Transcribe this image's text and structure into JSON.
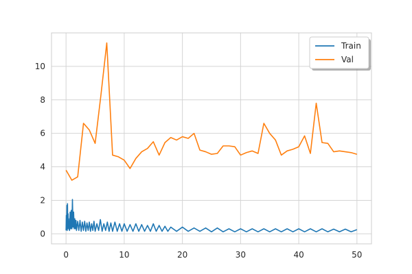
{
  "chart_data": {
    "type": "line",
    "title": "",
    "xlabel": "",
    "ylabel": "",
    "xlim": [
      -2.5,
      52.5
    ],
    "ylim": [
      -0.6,
      12.0
    ],
    "xticks": [
      0,
      10,
      20,
      30,
      40,
      50
    ],
    "yticks": [
      0,
      2,
      4,
      6,
      8,
      10
    ],
    "x_tick_labels": [
      "0",
      "10",
      "20",
      "30",
      "40",
      "50"
    ],
    "y_tick_labels": [
      "0",
      "2",
      "4",
      "6",
      "8",
      "10"
    ],
    "grid": true,
    "legend_position": "top-right",
    "series": [
      {
        "name": "Train",
        "color": "#1f77b4",
        "x": [
          0.0,
          0.05,
          0.1,
          0.15,
          0.2,
          0.25,
          0.3,
          0.35,
          0.4,
          0.45,
          0.5,
          0.6,
          0.7,
          0.8,
          0.9,
          1.0,
          1.1,
          1.2,
          1.3,
          1.4,
          1.5,
          1.6,
          1.7,
          1.8,
          2.0,
          2.2,
          2.4,
          2.6,
          2.8,
          3.0,
          3.2,
          3.4,
          3.6,
          3.8,
          4.0,
          4.2,
          4.4,
          4.6,
          4.8,
          5.0,
          5.3,
          5.6,
          5.9,
          6.2,
          6.5,
          6.8,
          7.1,
          7.4,
          7.7,
          8.0,
          8.4,
          8.8,
          9.2,
          9.6,
          10.0,
          10.5,
          11.0,
          11.5,
          12.0,
          12.5,
          13.0,
          13.5,
          14.0,
          14.5,
          15.0,
          15.5,
          16.0,
          16.5,
          17.0,
          17.5,
          18.0,
          19.0,
          20.0,
          21.0,
          22.0,
          23.0,
          24.0,
          25.0,
          26.0,
          27.0,
          28.0,
          29.0,
          30.0,
          31.0,
          32.0,
          33.0,
          34.0,
          35.0,
          36.0,
          37.0,
          38.0,
          39.0,
          40.0,
          41.0,
          42.0,
          43.0,
          44.0,
          45.0,
          46.0,
          47.0,
          48.0,
          49.0,
          50.0
        ],
        "values": [
          0.2,
          1.1,
          0.3,
          1.7,
          0.2,
          1.8,
          0.3,
          1.2,
          0.5,
          0.9,
          0.3,
          0.2,
          1.3,
          0.3,
          1.4,
          0.3,
          2.05,
          0.4,
          1.3,
          0.3,
          0.9,
          0.3,
          0.8,
          0.2,
          0.75,
          0.2,
          0.8,
          0.15,
          0.7,
          0.2,
          0.75,
          0.15,
          0.65,
          0.2,
          0.7,
          0.15,
          0.6,
          0.2,
          0.75,
          0.15,
          0.6,
          0.2,
          0.85,
          0.15,
          0.6,
          0.2,
          0.7,
          0.15,
          0.65,
          0.15,
          0.7,
          0.15,
          0.6,
          0.15,
          0.6,
          0.15,
          0.55,
          0.15,
          0.6,
          0.15,
          0.55,
          0.15,
          0.5,
          0.15,
          0.6,
          0.15,
          0.5,
          0.15,
          0.45,
          0.15,
          0.4,
          0.15,
          0.4,
          0.15,
          0.35,
          0.15,
          0.35,
          0.12,
          0.35,
          0.12,
          0.3,
          0.12,
          0.3,
          0.12,
          0.3,
          0.12,
          0.3,
          0.12,
          0.3,
          0.12,
          0.3,
          0.12,
          0.3,
          0.12,
          0.3,
          0.12,
          0.3,
          0.12,
          0.28,
          0.12,
          0.28,
          0.12,
          0.25
        ]
      },
      {
        "name": "Val",
        "color": "#ff7f0e",
        "x": [
          0,
          1,
          2,
          3,
          4,
          5,
          6,
          7,
          8,
          9,
          10,
          11,
          12,
          13,
          14,
          15,
          16,
          17,
          18,
          19,
          20,
          21,
          22,
          23,
          24,
          25,
          26,
          27,
          28,
          29,
          30,
          31,
          32,
          33,
          34,
          35,
          36,
          37,
          38,
          39,
          40,
          41,
          42,
          43,
          44,
          45,
          46,
          47,
          48,
          49,
          50
        ],
        "values": [
          3.8,
          3.2,
          3.4,
          6.6,
          6.2,
          5.4,
          8.3,
          11.4,
          4.7,
          4.6,
          4.4,
          3.9,
          4.5,
          4.9,
          5.1,
          5.5,
          4.7,
          5.45,
          5.75,
          5.6,
          5.8,
          5.7,
          6.0,
          5.0,
          4.9,
          4.75,
          4.8,
          5.25,
          5.25,
          5.2,
          4.7,
          4.85,
          4.95,
          4.8,
          6.6,
          6.0,
          5.6,
          4.7,
          4.95,
          5.05,
          5.2,
          5.85,
          4.8,
          7.8,
          5.45,
          5.4,
          4.9,
          4.95,
          4.9,
          4.85,
          4.75
        ]
      }
    ]
  }
}
